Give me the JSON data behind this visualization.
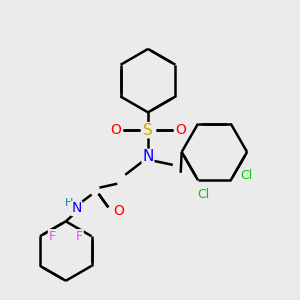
{
  "background_color": "#ebebeb",
  "bond_color": "#000000",
  "atom_colors": {
    "N": "#0000ff",
    "O": "#ff0000",
    "S": "#ccaa00",
    "F": "#ff44ff",
    "Cl": "#00cc00",
    "H": "#008888",
    "C": "#000000"
  },
  "line_width": 1.8,
  "figsize": [
    3.0,
    3.0
  ],
  "dpi": 100
}
